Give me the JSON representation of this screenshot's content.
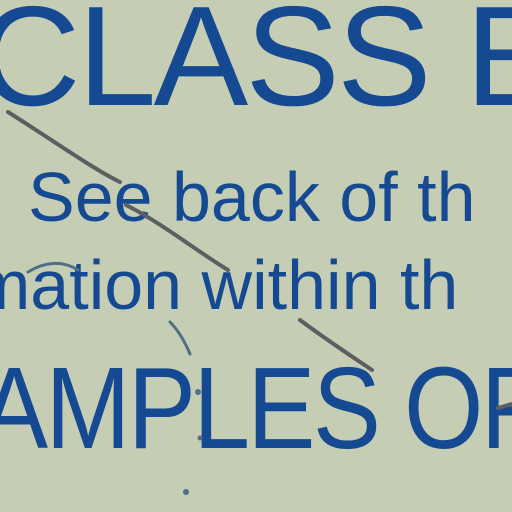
{
  "document": {
    "line1": "CLASS E",
    "line2": "See back of th",
    "line3": "mation within th",
    "line4": "AMPLES OF"
  },
  "colors": {
    "background": "#c5ceb4",
    "text": "#154a93",
    "pen_mark": "#5c5f61"
  }
}
